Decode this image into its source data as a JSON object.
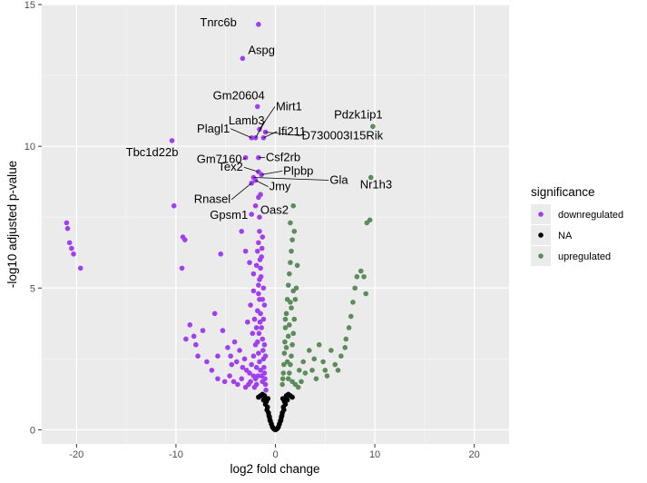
{
  "chart_data": {
    "type": "scatter",
    "title": "",
    "xlabel": "log2 fold change",
    "ylabel": "-log10 adjusted p-value",
    "xlim": [
      -23.5,
      23.5
    ],
    "ylim": [
      -0.5,
      15
    ],
    "x_ticks": [
      -20,
      -10,
      0,
      10,
      20
    ],
    "y_ticks": [
      0,
      5,
      10,
      15
    ],
    "grid": true,
    "legend": {
      "title": "significance",
      "placement": "right",
      "entries": [
        {
          "name": "downregulated",
          "color": "#a03ef0"
        },
        {
          "name": "NA",
          "color": "#000000"
        },
        {
          "name": "upregulated",
          "color": "#5b8c5a"
        }
      ]
    },
    "series": [
      {
        "name": "downregulated",
        "color": "#a03ef0",
        "points": [
          [
            -1.7,
            14.3
          ],
          [
            -3.3,
            13.1
          ],
          [
            -1.8,
            11.4
          ],
          [
            -1.6,
            10.6
          ],
          [
            -2.0,
            10.3
          ],
          [
            -2.4,
            10.3
          ],
          [
            -1.2,
            10.3
          ],
          [
            -1.0,
            10.5
          ],
          [
            -10.4,
            10.2
          ],
          [
            -3.0,
            9.6
          ],
          [
            -1.7,
            9.6
          ],
          [
            -1.7,
            9.1
          ],
          [
            -1.4,
            9.0
          ],
          [
            -2.2,
            8.9
          ],
          [
            -2.0,
            8.8
          ],
          [
            -2.4,
            8.7
          ],
          [
            -1.5,
            8.3
          ],
          [
            -1.7,
            8.2
          ],
          [
            -10.2,
            7.9
          ],
          [
            -2.4,
            7.6
          ],
          [
            -1.6,
            7.5
          ],
          [
            -2.0,
            7.9
          ],
          [
            -21.0,
            7.3
          ],
          [
            -20.9,
            7.1
          ],
          [
            -20.7,
            6.6
          ],
          [
            -20.5,
            6.4
          ],
          [
            -20.3,
            6.2
          ],
          [
            -19.6,
            5.7
          ],
          [
            -9.3,
            6.8
          ],
          [
            -9.1,
            6.7
          ],
          [
            -9.4,
            5.7
          ],
          [
            -5.5,
            6.2
          ],
          [
            -3.4,
            7.0
          ],
          [
            -3.0,
            6.3
          ],
          [
            -2.6,
            5.9
          ],
          [
            -2.2,
            5.5
          ],
          [
            -8.6,
            3.7
          ],
          [
            -8.2,
            3.3
          ],
          [
            -7.3,
            3.5
          ],
          [
            -6.1,
            4.1
          ],
          [
            -5.3,
            3.5
          ],
          [
            -4.5,
            2.6
          ],
          [
            -4.1,
            3.1
          ],
          [
            -3.6,
            2.8
          ],
          [
            -3.1,
            2.5
          ],
          [
            -2.8,
            3.8
          ],
          [
            -2.5,
            4.4
          ],
          [
            -2.2,
            4.9
          ],
          [
            -7.8,
            2.6
          ],
          [
            -6.9,
            2.4
          ],
          [
            -6.4,
            2.1
          ],
          [
            -5.8,
            1.8
          ],
          [
            -5.1,
            1.7
          ],
          [
            -4.6,
            1.9
          ],
          [
            -4.2,
            1.7
          ],
          [
            -3.8,
            1.6
          ],
          [
            -3.4,
            1.8
          ],
          [
            -3.0,
            1.5
          ],
          [
            -2.7,
            1.6
          ],
          [
            -9.0,
            3.2
          ],
          [
            -8.0,
            3.0
          ],
          [
            -5.8,
            2.6
          ],
          [
            -4.8,
            2.9
          ],
          [
            -4.4,
            2.3
          ],
          [
            -3.9,
            2.4
          ],
          [
            -3.3,
            2.2
          ],
          [
            -2.9,
            2.1
          ],
          [
            -2.6,
            2.0
          ],
          [
            -2.4,
            2.3
          ],
          [
            -2.2,
            2.6
          ],
          [
            -2.0,
            3.0
          ],
          [
            -1.9,
            3.6
          ],
          [
            -1.8,
            4.2
          ],
          [
            -1.7,
            4.8
          ],
          [
            -1.6,
            5.3
          ],
          [
            -1.5,
            5.7
          ],
          [
            -1.4,
            6.1
          ],
          [
            -1.35,
            6.4
          ],
          [
            -1.3,
            6.8
          ],
          [
            -1.9,
            5.8
          ],
          [
            -1.8,
            6.3
          ],
          [
            -1.7,
            6.6
          ],
          [
            -1.6,
            7.0
          ],
          [
            -1.7,
            5.1
          ],
          [
            -1.6,
            4.6
          ],
          [
            -1.5,
            4.1
          ],
          [
            -1.4,
            3.6
          ],
          [
            -1.3,
            3.2
          ],
          [
            -1.25,
            2.8
          ],
          [
            -1.2,
            2.5
          ],
          [
            -1.15,
            2.2
          ],
          [
            -1.1,
            2.0
          ],
          [
            -1.05,
            1.8
          ],
          [
            -1.0,
            1.6
          ],
          [
            -0.95,
            1.4
          ],
          [
            -1.3,
            1.7
          ],
          [
            -1.4,
            1.9
          ],
          [
            -1.5,
            2.1
          ],
          [
            -1.6,
            2.4
          ],
          [
            -1.7,
            2.7
          ],
          [
            -1.8,
            3.1
          ],
          [
            -1.9,
            2.2
          ],
          [
            -2.0,
            1.8
          ],
          [
            -2.1,
            1.5
          ],
          [
            -1.2,
            3.9
          ],
          [
            -1.1,
            4.4
          ],
          [
            -1.2,
            5.0
          ],
          [
            -1.1,
            3.0
          ],
          [
            -1.0,
            2.6
          ],
          [
            -1.3,
            4.6
          ],
          [
            -1.45,
            5.4
          ],
          [
            -1.55,
            6.0
          ],
          [
            -2.3,
            3.4
          ],
          [
            -2.1,
            3.9
          ],
          [
            -2.2,
            1.9
          ],
          [
            -2.5,
            1.7
          ],
          [
            -1.9,
            1.6
          ],
          [
            -1.75,
            1.9
          ],
          [
            -1.65,
            3.4
          ],
          [
            -1.55,
            3.8
          ]
        ]
      },
      {
        "name": "NA",
        "color": "#000000",
        "points": [
          [
            -1.1,
            1.2
          ],
          [
            -0.9,
            1.0
          ],
          [
            -0.8,
            0.8
          ],
          [
            -0.7,
            0.6
          ],
          [
            -0.6,
            0.45
          ],
          [
            -0.5,
            0.3
          ],
          [
            -0.4,
            0.2
          ],
          [
            -0.3,
            0.1
          ],
          [
            -0.2,
            0.05
          ],
          [
            0.0,
            0.0
          ],
          [
            0.2,
            0.05
          ],
          [
            0.3,
            0.1
          ],
          [
            0.4,
            0.2
          ],
          [
            0.5,
            0.3
          ],
          [
            0.6,
            0.45
          ],
          [
            0.7,
            0.6
          ],
          [
            0.8,
            0.8
          ],
          [
            0.9,
            1.0
          ],
          [
            1.1,
            1.2
          ],
          [
            1.3,
            1.25
          ],
          [
            1.5,
            1.2
          ],
          [
            -1.3,
            1.25
          ],
          [
            -1.5,
            1.2
          ],
          [
            -1.7,
            1.15
          ],
          [
            -1.0,
            0.9
          ],
          [
            -0.85,
            0.7
          ],
          [
            -0.65,
            0.5
          ],
          [
            -0.55,
            0.35
          ],
          [
            0.55,
            0.35
          ],
          [
            0.65,
            0.5
          ],
          [
            0.85,
            0.7
          ],
          [
            1.0,
            0.9
          ],
          [
            1.7,
            1.15
          ],
          [
            -0.1,
            0.02
          ],
          [
            0.1,
            0.02
          ],
          [
            -1.2,
            1.05
          ],
          [
            1.2,
            1.05
          ],
          [
            -0.75,
            1.1
          ],
          [
            0.75,
            1.1
          ]
        ]
      },
      {
        "name": "upregulated",
        "color": "#5b8c5a",
        "points": [
          [
            9.8,
            10.7
          ],
          [
            9.6,
            8.9
          ],
          [
            9.5,
            7.4
          ],
          [
            9.2,
            7.3
          ],
          [
            1.8,
            7.9
          ],
          [
            1.5,
            7.3
          ],
          [
            1.9,
            7.0
          ],
          [
            1.7,
            6.7
          ],
          [
            1.6,
            6.3
          ],
          [
            1.5,
            5.9
          ],
          [
            1.4,
            5.5
          ],
          [
            1.3,
            5.1
          ],
          [
            1.2,
            4.6
          ],
          [
            1.1,
            4.1
          ],
          [
            1.0,
            3.6
          ],
          [
            0.95,
            3.1
          ],
          [
            0.9,
            2.7
          ],
          [
            0.85,
            2.3
          ],
          [
            0.8,
            2.0
          ],
          [
            0.75,
            1.8
          ],
          [
            0.7,
            1.6
          ],
          [
            1.9,
            3.9
          ],
          [
            1.8,
            3.4
          ],
          [
            1.7,
            3.0
          ],
          [
            1.6,
            2.6
          ],
          [
            1.5,
            2.3
          ],
          [
            1.4,
            2.0
          ],
          [
            1.3,
            1.8
          ],
          [
            2.0,
            4.6
          ],
          [
            2.1,
            5.0
          ],
          [
            2.2,
            5.8
          ],
          [
            3.4,
            2.8
          ],
          [
            4.4,
            3.0
          ],
          [
            4.8,
            2.4
          ],
          [
            5.6,
            2.8
          ],
          [
            6.0,
            2.3
          ],
          [
            6.6,
            2.6
          ],
          [
            7.1,
            3.2
          ],
          [
            7.4,
            3.6
          ],
          [
            7.8,
            4.5
          ],
          [
            8.2,
            5.4
          ],
          [
            8.6,
            5.6
          ],
          [
            8.9,
            5.4
          ],
          [
            9.1,
            4.8
          ],
          [
            8.0,
            5.0
          ],
          [
            7.6,
            4.0
          ],
          [
            7.0,
            2.9
          ],
          [
            5.2,
            1.9
          ],
          [
            4.1,
            1.8
          ],
          [
            3.7,
            2.1
          ],
          [
            3.0,
            2.0
          ],
          [
            2.6,
            1.7
          ],
          [
            2.3,
            1.5
          ],
          [
            2.0,
            1.6
          ],
          [
            1.7,
            1.7
          ],
          [
            1.2,
            2.4
          ],
          [
            1.1,
            2.9
          ],
          [
            1.3,
            3.3
          ],
          [
            1.0,
            3.9
          ],
          [
            1.6,
            4.3
          ],
          [
            1.8,
            4.9
          ],
          [
            1.5,
            4.5
          ],
          [
            1.4,
            3.7
          ],
          [
            2.4,
            2.1
          ],
          [
            2.8,
            2.4
          ],
          [
            3.9,
            2.5
          ],
          [
            6.3,
            2.1
          ],
          [
            5.0,
            2.1
          ]
        ]
      }
    ],
    "annotations": [
      {
        "label": "Tnrc6b",
        "x": -1.7,
        "y": 14.3
      },
      {
        "label": "Aspg",
        "x": -3.3,
        "y": 13.1
      },
      {
        "label": "Gm20604",
        "x": -1.8,
        "y": 11.4
      },
      {
        "label": "Mirt1",
        "x": -1.6,
        "y": 10.6
      },
      {
        "label": "Lamb3",
        "x": -2.0,
        "y": 10.3
      },
      {
        "label": "Plagl1",
        "x": -2.4,
        "y": 10.3
      },
      {
        "label": "Ifi211",
        "x": -1.2,
        "y": 10.3
      },
      {
        "label": "Pdzk1ip1",
        "x": 9.8,
        "y": 10.7
      },
      {
        "label": "Gm7160",
        "x": -3.0,
        "y": 9.6
      },
      {
        "label": "Csf2rb",
        "x": -1.7,
        "y": 9.6
      },
      {
        "label": "D730003I15Rik",
        "x": -1.0,
        "y": 10.5
      },
      {
        "label": "Tbc1d22b",
        "x": -10.4,
        "y": 10.2
      },
      {
        "label": "Tex2",
        "x": -1.7,
        "y": 9.1
      },
      {
        "label": "Plpbp",
        "x": -1.4,
        "y": 9.0
      },
      {
        "label": "Gla",
        "x": -2.2,
        "y": 8.9
      },
      {
        "label": "Rnasel",
        "x": -2.4,
        "y": 8.7
      },
      {
        "label": "Jmy",
        "x": -2.0,
        "y": 8.8
      },
      {
        "label": "Nr1h3",
        "x": 9.6,
        "y": 8.9
      },
      {
        "label": "Gpsm1",
        "x": -2.4,
        "y": 7.6
      },
      {
        "label": "Oas2",
        "x": -1.7,
        "y": 8.2
      }
    ]
  }
}
